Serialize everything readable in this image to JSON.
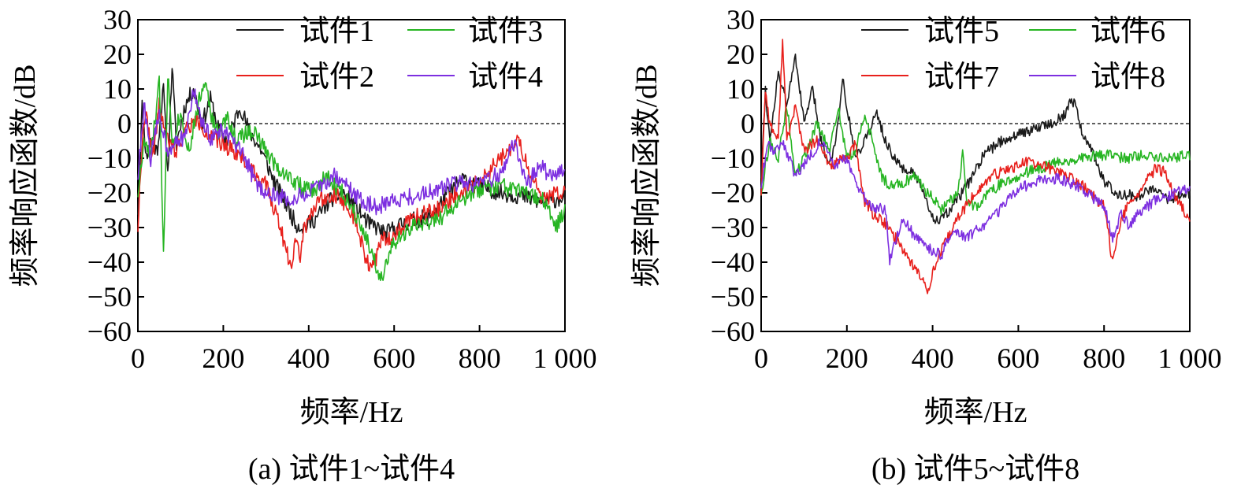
{
  "chart_data": [
    {
      "type": "line",
      "panel_caption": "(a) 试件1~试件4",
      "xlabel": "频率/Hz",
      "ylabel": "频率响应函数/dB",
      "xlim": [
        0,
        1000
      ],
      "ylim": [
        -60,
        30
      ],
      "xticks": [
        0,
        200,
        400,
        600,
        800,
        1000
      ],
      "xtick_labels": [
        "0",
        "200",
        "400",
        "600",
        "800",
        "1 000"
      ],
      "yticks": [
        30,
        20,
        10,
        0,
        -10,
        -20,
        -30,
        -40,
        -50,
        -60
      ],
      "ytick_labels": [
        "30",
        "20",
        "10",
        "0",
        "−10",
        "−20",
        "−30",
        "−40",
        "−50",
        "−60"
      ],
      "reference_line": {
        "y": 0,
        "style": "dashed"
      },
      "legend_position": "top-right",
      "noise": 2.5,
      "series": [
        {
          "name": "试件1",
          "color": "#1a1a1a",
          "seed": 11,
          "x": [
            0,
            10,
            20,
            30,
            45,
            60,
            70,
            80,
            90,
            110,
            130,
            150,
            170,
            190,
            210,
            230,
            240,
            260,
            290,
            320,
            350,
            370,
            390,
            420,
            450,
            480,
            510,
            540,
            560,
            580,
            600,
            640,
            680,
            700,
            720,
            760,
            800,
            850,
            900,
            950,
            1000
          ],
          "y": [
            -25,
            5,
            -10,
            -5,
            -8,
            10,
            -15,
            17,
            -6,
            5,
            10,
            0,
            7,
            -2,
            -5,
            2,
            5,
            -2,
            -8,
            -17,
            -24,
            -29,
            -30,
            -27,
            -22,
            -20,
            -24,
            -29,
            -30,
            -32,
            -30,
            -28,
            -27,
            -25,
            -21,
            -16,
            -18,
            -20,
            -21,
            -23,
            -21
          ]
        },
        {
          "name": "试件2",
          "color": "#e8201c",
          "seed": 22,
          "x": [
            0,
            10,
            20,
            35,
            50,
            70,
            90,
            110,
            140,
            170,
            200,
            230,
            260,
            300,
            330,
            350,
            360,
            370,
            380,
            390,
            420,
            460,
            500,
            520,
            540,
            555,
            570,
            600,
            650,
            700,
            750,
            800,
            850,
            880,
            890,
            900,
            920,
            950,
            1000
          ],
          "y": [
            -30,
            -5,
            2,
            -10,
            5,
            -5,
            -8,
            -2,
            1,
            -4,
            -6,
            -8,
            -12,
            -18,
            -28,
            -38,
            -40,
            -32,
            -38,
            -30,
            -22,
            -20,
            -25,
            -33,
            -41,
            -40,
            -34,
            -32,
            -27,
            -25,
            -20,
            -17,
            -10,
            -7,
            -5,
            -8,
            -15,
            -22,
            -19
          ]
        },
        {
          "name": "试件3",
          "color": "#27b523",
          "seed": 33,
          "x": [
            0,
            15,
            30,
            50,
            60,
            70,
            80,
            100,
            120,
            140,
            160,
            170,
            190,
            210,
            230,
            250,
            270,
            300,
            330,
            360,
            390,
            420,
            440,
            460,
            480,
            520,
            550,
            570,
            580,
            600,
            640,
            700,
            750,
            800,
            850,
            900,
            950,
            980,
            1000
          ],
          "y": [
            -20,
            -5,
            -10,
            12,
            -38,
            15,
            -5,
            3,
            -8,
            5,
            14,
            2,
            -3,
            2,
            -5,
            -3,
            -2,
            -8,
            -13,
            -16,
            -19,
            -19,
            -15,
            -18,
            -20,
            -28,
            -38,
            -45,
            -40,
            -35,
            -30,
            -28,
            -23,
            -19,
            -18,
            -20,
            -22,
            -30,
            -25
          ]
        },
        {
          "name": "试件4",
          "color": "#7d2fe0",
          "seed": 44,
          "x": [
            0,
            15,
            30,
            50,
            70,
            90,
            110,
            130,
            150,
            170,
            200,
            220,
            250,
            280,
            320,
            360,
            400,
            430,
            460,
            490,
            520,
            560,
            600,
            650,
            700,
            750,
            800,
            850,
            880,
            890,
            910,
            940,
            970,
            1000
          ],
          "y": [
            -15,
            5,
            -10,
            3,
            -8,
            -4,
            -5,
            10,
            0,
            -4,
            -2,
            -5,
            -10,
            -18,
            -21,
            -22,
            -20,
            -18,
            -15,
            -18,
            -22,
            -24,
            -22,
            -21,
            -19,
            -17,
            -18,
            -14,
            -6,
            -8,
            -18,
            -12,
            -16,
            -12
          ]
        }
      ]
    },
    {
      "type": "line",
      "panel_caption": "(b) 试件5~试件8",
      "xlabel": "频率/Hz",
      "ylabel": "频率响应函数/dB",
      "xlim": [
        0,
        1000
      ],
      "ylim": [
        -60,
        30
      ],
      "xticks": [
        0,
        200,
        400,
        600,
        800,
        1000
      ],
      "xtick_labels": [
        "0",
        "200",
        "400",
        "600",
        "800",
        "1 000"
      ],
      "yticks": [
        30,
        20,
        10,
        0,
        -10,
        -20,
        -30,
        -40,
        -50,
        -60
      ],
      "ytick_labels": [
        "30",
        "20",
        "10",
        "0",
        "−10",
        "−20",
        "−30",
        "−40",
        "−50",
        "−60"
      ],
      "reference_line": {
        "y": 0,
        "style": "dashed"
      },
      "legend_position": "top-right",
      "noise": 1.6,
      "series": [
        {
          "name": "试件5",
          "color": "#1a1a1a",
          "seed": 55,
          "x": [
            0,
            10,
            20,
            40,
            60,
            80,
            100,
            120,
            140,
            160,
            180,
            190,
            200,
            220,
            240,
            260,
            270,
            290,
            320,
            360,
            400,
            420,
            440,
            480,
            520,
            560,
            600,
            650,
            690,
            710,
            725,
            735,
            750,
            780,
            800,
            830,
            880,
            920,
            950,
            1000
          ],
          "y": [
            -15,
            10,
            -5,
            15,
            5,
            20,
            0,
            10,
            -5,
            -12,
            0,
            14,
            5,
            -10,
            -5,
            0,
            3,
            -5,
            -12,
            -15,
            -27,
            -28,
            -25,
            -18,
            -9,
            -5,
            -3,
            -1,
            1,
            3,
            7,
            5,
            -3,
            -10,
            -17,
            -20,
            -21,
            -18,
            -22,
            -20
          ]
        },
        {
          "name": "试件6",
          "color": "#27b523",
          "seed": 66,
          "x": [
            0,
            20,
            40,
            60,
            80,
            100,
            130,
            160,
            180,
            200,
            220,
            240,
            260,
            280,
            300,
            330,
            360,
            380,
            400,
            420,
            440,
            460,
            470,
            480,
            500,
            540,
            580,
            620,
            650,
            700,
            750,
            800,
            850,
            900,
            950,
            1000
          ],
          "y": [
            -20,
            -5,
            -10,
            5,
            -15,
            -10,
            0,
            -8,
            5,
            -10,
            -8,
            2,
            -5,
            -15,
            -18,
            -17,
            -15,
            -19,
            -21,
            -25,
            -22,
            -20,
            -8,
            -22,
            -24,
            -19,
            -16,
            -14,
            -13,
            -11,
            -10,
            -9,
            -10,
            -9,
            -10,
            -9
          ]
        },
        {
          "name": "试件7",
          "color": "#e8201c",
          "seed": 77,
          "x": [
            0,
            10,
            20,
            40,
            50,
            60,
            80,
            100,
            130,
            160,
            200,
            220,
            240,
            260,
            290,
            320,
            350,
            380,
            390,
            400,
            420,
            460,
            500,
            540,
            580,
            620,
            650,
            700,
            750,
            800,
            820,
            830,
            850,
            880,
            920,
            940,
            970,
            1000
          ],
          "y": [
            -20,
            10,
            0,
            -5,
            25,
            -5,
            5,
            -8,
            -5,
            -12,
            -10,
            -6,
            -22,
            -26,
            -29,
            -34,
            -40,
            -46,
            -48,
            -43,
            -37,
            -27,
            -20,
            -15,
            -13,
            -11,
            -12,
            -14,
            -18,
            -24,
            -40,
            -32,
            -25,
            -20,
            -13,
            -14,
            -22,
            -28
          ]
        },
        {
          "name": "试件8",
          "color": "#7d2fe0",
          "seed": 88,
          "x": [
            0,
            15,
            30,
            50,
            80,
            110,
            140,
            170,
            200,
            230,
            260,
            290,
            300,
            330,
            360,
            390,
            420,
            440,
            460,
            480,
            500,
            550,
            600,
            650,
            700,
            750,
            800,
            820,
            840,
            860,
            880,
            920,
            950,
            980,
            1000
          ],
          "y": [
            -18,
            -5,
            -8,
            -5,
            -15,
            -10,
            -5,
            -12,
            -10,
            -20,
            -24,
            -25,
            -40,
            -27,
            -33,
            -36,
            -38,
            -33,
            -32,
            -33,
            -31,
            -26,
            -19,
            -16,
            -16,
            -19,
            -24,
            -33,
            -26,
            -30,
            -26,
            -22,
            -21,
            -19,
            -19
          ]
        }
      ]
    }
  ]
}
